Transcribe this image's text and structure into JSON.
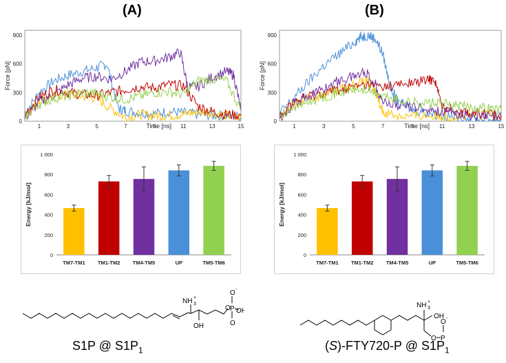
{
  "panels": [
    {
      "label": "(A)",
      "caption_main": "S1P @ S1P",
      "caption_sub": "1"
    },
    {
      "label": "(B)",
      "caption_prefix": "(",
      "caption_italic": "S",
      "caption_main": ")-FTY720-P @ S1P",
      "caption_sub": "1"
    }
  ],
  "chart_data": [
    {
      "type": "line",
      "panel": "A",
      "ylabel": "Force [pN]",
      "xlabel": "Time [ns]",
      "xlim": [
        0,
        15
      ],
      "ylim": [
        0,
        950
      ],
      "x_ticks": [
        1,
        3,
        5,
        7,
        9,
        11,
        13,
        15
      ],
      "y_ticks": [
        0,
        300,
        600,
        900
      ],
      "series": [
        {
          "color": "#4a90d9",
          "x": [
            0,
            1,
            2,
            3,
            4,
            5,
            5.7,
            6.5,
            7,
            8,
            9,
            10,
            11,
            12,
            13,
            14,
            15
          ],
          "y": [
            80,
            300,
            420,
            480,
            520,
            560,
            600,
            130,
            110,
            90,
            80,
            100,
            90,
            70,
            60,
            60,
            50
          ]
        },
        {
          "color": "#ffc000",
          "x": [
            0,
            1,
            2,
            3,
            4,
            5,
            6,
            7,
            8,
            9,
            10,
            11,
            12,
            13,
            14,
            15
          ],
          "y": [
            60,
            220,
            260,
            280,
            260,
            240,
            130,
            40,
            70,
            60,
            60,
            70,
            100,
            90,
            60,
            40
          ]
        },
        {
          "color": "#c00000",
          "x": [
            0,
            1,
            2,
            3,
            4,
            5,
            6,
            7,
            8,
            9,
            10,
            11,
            12,
            13,
            14,
            15
          ],
          "y": [
            80,
            250,
            330,
            300,
            280,
            270,
            300,
            330,
            360,
            350,
            380,
            370,
            160,
            100,
            70,
            60
          ]
        },
        {
          "color": "#7030a0",
          "x": [
            0,
            1,
            2,
            3,
            4,
            5,
            6,
            7,
            8,
            9,
            10,
            10.8,
            11.3,
            12,
            13,
            14,
            14.5,
            15
          ],
          "y": [
            30,
            200,
            270,
            380,
            450,
            470,
            440,
            520,
            620,
            630,
            670,
            720,
            360,
            360,
            460,
            520,
            480,
            110
          ]
        },
        {
          "color": "#92d050",
          "x": [
            0,
            1,
            2,
            3,
            4,
            5,
            6,
            7,
            8,
            9,
            10,
            11,
            12,
            13,
            14,
            15
          ],
          "y": [
            40,
            180,
            240,
            270,
            300,
            290,
            250,
            230,
            260,
            300,
            310,
            280,
            420,
            440,
            420,
            120
          ]
        }
      ]
    },
    {
      "type": "line",
      "panel": "B",
      "ylabel": "Force [pN]",
      "xlabel": "Time [ns]",
      "xlim": [
        0,
        15
      ],
      "ylim": [
        0,
        950
      ],
      "x_ticks": [
        1,
        3,
        5,
        7,
        9,
        11,
        13,
        15
      ],
      "y_ticks": [
        0,
        300,
        600,
        900
      ],
      "series": [
        {
          "color": "#4a90d9",
          "x": [
            0,
            1,
            2,
            3,
            4,
            5,
            5.5,
            6,
            6.5,
            7,
            7.5,
            8,
            9,
            10,
            11,
            12,
            13,
            14,
            15
          ],
          "y": [
            80,
            250,
            420,
            580,
            700,
            820,
            880,
            900,
            860,
            700,
            350,
            200,
            120,
            90,
            60,
            40,
            30,
            20,
            10
          ]
        },
        {
          "color": "#ffc000",
          "x": [
            0,
            1,
            2,
            3,
            4,
            5,
            6,
            6.5,
            7,
            8,
            9,
            10,
            11,
            12,
            13,
            14,
            15
          ],
          "y": [
            60,
            180,
            230,
            280,
            330,
            380,
            420,
            300,
            100,
            60,
            50,
            60,
            50,
            50,
            60,
            70,
            80
          ]
        },
        {
          "color": "#c00000",
          "x": [
            0,
            1,
            2,
            3,
            4,
            5,
            6,
            7,
            8,
            9,
            10,
            10.5,
            11,
            12,
            13,
            14,
            15
          ],
          "y": [
            60,
            200,
            260,
            300,
            330,
            360,
            380,
            360,
            380,
            400,
            430,
            440,
            150,
            110,
            90,
            70,
            60
          ]
        },
        {
          "color": "#7030a0",
          "x": [
            0,
            1,
            2,
            3,
            4,
            5,
            5.8,
            6.5,
            7,
            8,
            9,
            10,
            11,
            12,
            13,
            14,
            15
          ],
          "y": [
            40,
            190,
            270,
            340,
            420,
            470,
            520,
            380,
            200,
            170,
            150,
            130,
            100,
            80,
            60,
            50,
            40
          ]
        },
        {
          "color": "#92d050",
          "x": [
            0,
            1,
            2,
            3,
            4,
            5,
            6,
            7,
            8,
            9,
            10,
            11,
            12,
            13,
            14,
            15
          ],
          "y": [
            50,
            150,
            200,
            260,
            300,
            330,
            320,
            260,
            220,
            200,
            190,
            180,
            160,
            150,
            140,
            120
          ]
        }
      ]
    },
    {
      "type": "bar",
      "panel": "A",
      "ylabel": "Energy  [kJ/mol]",
      "categories": [
        "TM7-TM1",
        "TM1-TM2",
        "TM4-TM5",
        "UP",
        "TM5-TM6"
      ],
      "values": [
        465,
        730,
        755,
        840,
        885
      ],
      "errors": [
        30,
        60,
        120,
        55,
        45
      ],
      "colors": [
        "#ffc000",
        "#c00000",
        "#7030a0",
        "#4a90d9",
        "#92d050"
      ],
      "ylim": [
        0,
        1000
      ],
      "y_ticks": [
        0,
        200,
        400,
        600,
        800,
        1000
      ],
      "y_tick_labels": [
        "0",
        "200",
        "400",
        "600",
        "800",
        "1 000"
      ]
    },
    {
      "type": "bar",
      "panel": "B",
      "ylabel": "Energy  [kJ/mol]",
      "categories": [
        "TM7-TM1",
        "TM1-TM2",
        "TM4-TM5",
        "UP",
        "TM5-TM6"
      ],
      "values": [
        465,
        730,
        755,
        840,
        885
      ],
      "errors": [
        30,
        60,
        120,
        55,
        45
      ],
      "colors": [
        "#ffc000",
        "#c00000",
        "#7030a0",
        "#4a90d9",
        "#92d050"
      ],
      "ylim": [
        0,
        1000
      ],
      "y_ticks": [
        0,
        200,
        400,
        600,
        800,
        1000
      ],
      "y_tick_labels": [
        "0",
        "200",
        "400",
        "600",
        "800",
        "1 000"
      ]
    }
  ],
  "structures": {
    "s1p": {
      "nh3": "NH",
      "nh3_sub": "3",
      "nh3_sup": "+",
      "oh": "OH",
      "o_minus": "O",
      "o_minus_sup": "-",
      "o": "O",
      "p": "P",
      "p_oh": "OH",
      "p_o": "O"
    },
    "fty": {
      "nh3": "NH",
      "nh3_sub": "3",
      "nh3_sup": "+",
      "oh": "OH",
      "o": "O",
      "p": "P",
      "o_minus": "O",
      "o_minus_sup": "-",
      "ho": "HO",
      "p_o": "O"
    }
  }
}
